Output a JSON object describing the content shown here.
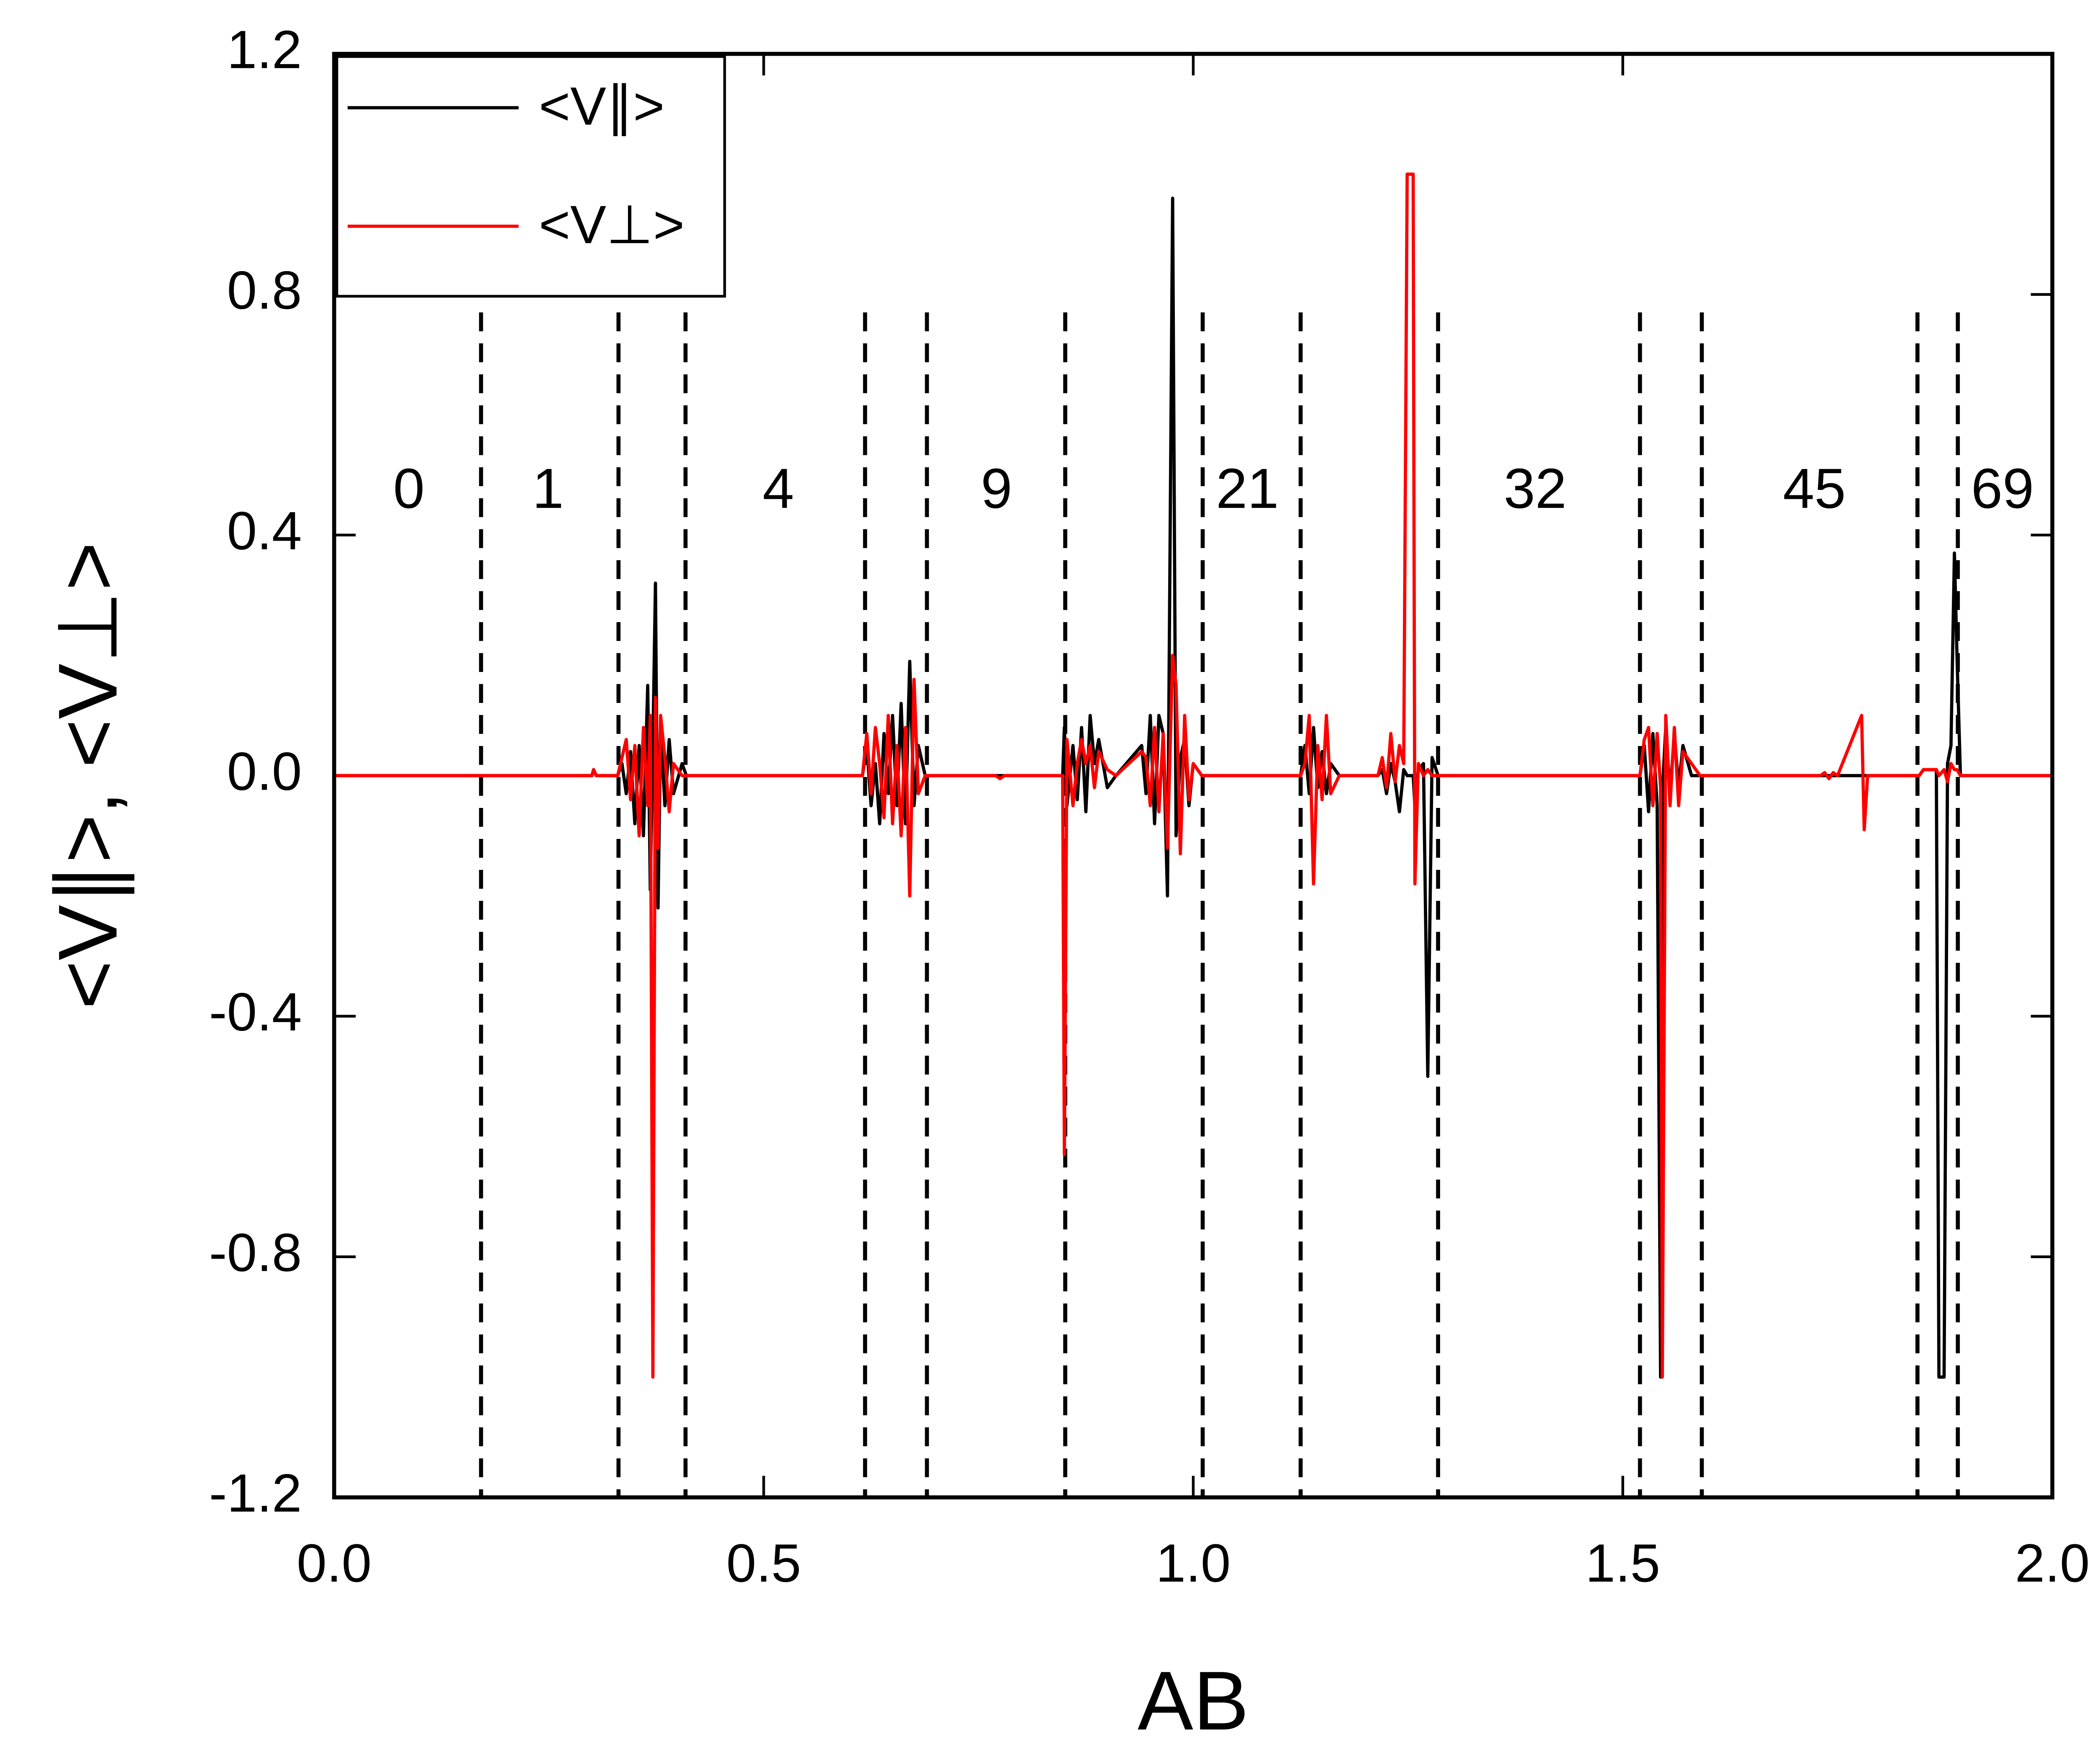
{
  "chart_data": {
    "type": "line",
    "xlabel": "AB",
    "ylabel": "<V∥>, <V⊥>",
    "xlim": [
      0,
      2
    ],
    "ylim": [
      -1.2,
      1.2
    ],
    "xticks": [
      {
        "value": 0,
        "label": "0.0"
      },
      0.5,
      {
        "value": 1,
        "label": "1.0"
      },
      1.5,
      {
        "value": 2,
        "label": "2.0"
      }
    ],
    "yticks": [
      -1.2,
      -0.8,
      -0.4,
      {
        "value": 0,
        "label": "0.0"
      },
      0.4,
      0.8,
      1.2
    ],
    "legend": "upper left",
    "vlines": [
      0.171,
      0.331,
      0.409,
      0.618,
      0.69,
      0.851,
      1.011,
      1.125,
      1.285,
      1.52,
      1.592,
      1.843,
      1.89
    ],
    "annotations": [
      {
        "text": "0",
        "x": 0.087,
        "y": 0.47
      },
      {
        "text": "1",
        "x": 0.249,
        "y": 0.47
      },
      {
        "text": "4",
        "x": 0.517,
        "y": 0.47
      },
      {
        "text": "9",
        "x": 0.771,
        "y": 0.47
      },
      {
        "text": "21",
        "x": 1.063,
        "y": 0.47
      },
      {
        "text": "32",
        "x": 1.398,
        "y": 0.47
      },
      {
        "text": "45",
        "x": 1.723,
        "y": 0.47
      },
      {
        "text": "69",
        "x": 1.942,
        "y": 0.47
      }
    ],
    "x": [
      0,
      0.3,
      0.302,
      0.305,
      0.33,
      0.335,
      0.34,
      0.345,
      0.35,
      0.355,
      0.36,
      0.365,
      0.368,
      0.371,
      0.374,
      0.377,
      0.38,
      0.385,
      0.39,
      0.395,
      0.405,
      0.41,
      0.615,
      0.62,
      0.625,
      0.63,
      0.635,
      0.64,
      0.645,
      0.65,
      0.655,
      0.66,
      0.665,
      0.67,
      0.675,
      0.68,
      0.688,
      0.77,
      0.775,
      0.78,
      0.848,
      0.85,
      0.853,
      0.86,
      0.865,
      0.87,
      0.875,
      0.88,
      0.885,
      0.89,
      0.9,
      0.91,
      0.94,
      0.945,
      0.95,
      0.955,
      0.96,
      0.965,
      0.97,
      0.976,
      0.98,
      0.985,
      0.99,
      0.995,
      1.0,
      1.01,
      1.125,
      1.13,
      1.135,
      1.14,
      1.145,
      1.15,
      1.155,
      1.16,
      1.17,
      1.215,
      1.22,
      1.225,
      1.23,
      1.235,
      1.24,
      1.245,
      1.249,
      1.256,
      1.258,
      1.262,
      1.268,
      1.273,
      1.278,
      1.285,
      1.52,
      1.525,
      1.53,
      1.535,
      1.54,
      1.544,
      1.546,
      1.55,
      1.555,
      1.56,
      1.565,
      1.57,
      1.58,
      1.59,
      1.73,
      1.735,
      1.74,
      1.745,
      1.75,
      1.778,
      1.781,
      1.785,
      1.845,
      1.85,
      1.865,
      1.868,
      1.874,
      1.878,
      1.882,
      1.886,
      1.889,
      1.893,
      2.0
    ],
    "series": [
      {
        "name": "<V∥>",
        "color": "#000000",
        "values": [
          0,
          0,
          0.01,
          0,
          0,
          0.02,
          -0.03,
          0.04,
          -0.08,
          0.05,
          -0.1,
          0.15,
          -0.19,
          0.05,
          0.32,
          -0.22,
          0.08,
          -0.05,
          0.06,
          -0.03,
          0.02,
          0,
          0,
          0.05,
          -0.05,
          0.02,
          -0.08,
          0.07,
          -0.03,
          0.1,
          -0.05,
          0.12,
          -0.08,
          0.19,
          -0.05,
          0.05,
          0,
          0,
          0,
          0,
          0,
          0.08,
          -0.05,
          0.05,
          -0.04,
          0.08,
          -0.06,
          0.1,
          0.02,
          0.06,
          -0.02,
          0,
          0.05,
          -0.03,
          0.1,
          -0.08,
          0.1,
          0.07,
          -0.2,
          0.96,
          -0.1,
          0.03,
          0.06,
          -0.05,
          0.02,
          0,
          0,
          0.05,
          -0.03,
          0.08,
          -0.02,
          0.04,
          -0.03,
          0.02,
          0,
          0,
          0.01,
          -0.03,
          0.02,
          -0.01,
          -0.06,
          0.01,
          0,
          0,
          -0.05,
          0.01,
          0.02,
          -0.5,
          0.03,
          0,
          0,
          0.05,
          -0.06,
          0.07,
          -0.05,
          -1.0,
          -0.03,
          0.08,
          -0.03,
          0.07,
          -0.02,
          0.05,
          0,
          0,
          0,
          0,
          0,
          0,
          0,
          0,
          0,
          0,
          0,
          0.01,
          0.01,
          -1.0,
          -1.0,
          0.02,
          0.05,
          0.37,
          0.2,
          0,
          0
        ]
      },
      {
        "name": "<V⊥>",
        "color": "#ff0000",
        "values": [
          0,
          0,
          0.01,
          0,
          0,
          0.03,
          0.06,
          -0.04,
          0.05,
          -0.1,
          0.08,
          -0.05,
          0.1,
          -1.0,
          0.13,
          -0.12,
          0.1,
          0.03,
          -0.06,
          0.02,
          0,
          0,
          0,
          0.07,
          -0.03,
          0.08,
          0.02,
          -0.07,
          0.1,
          -0.08,
          0.05,
          -0.1,
          0.08,
          -0.2,
          0.16,
          -0.03,
          0,
          0,
          -0.005,
          0,
          0,
          -0.63,
          0.06,
          -0.05,
          0.02,
          0.06,
          0.02,
          0.05,
          -0.02,
          0.04,
          0.01,
          0,
          0.04,
          0.03,
          -0.05,
          0.08,
          -0.06,
          0.07,
          -0.12,
          0.2,
          0.15,
          -0.13,
          0.1,
          -0.04,
          0.02,
          0,
          0,
          0.02,
          0.1,
          -0.18,
          0.05,
          -0.04,
          0.1,
          -0.03,
          0,
          0,
          0.03,
          -0.02,
          0.07,
          -0.01,
          0.05,
          0.02,
          1.0,
          1.0,
          -0.18,
          0.02,
          0,
          0.01,
          0,
          0,
          0,
          0.06,
          0.08,
          -0.05,
          0.07,
          -0.02,
          -1.0,
          0.1,
          -0.05,
          0.08,
          -0.05,
          0.04,
          0.02,
          0,
          0,
          0.005,
          -0.005,
          0.005,
          0,
          0.1,
          -0.09,
          0,
          0,
          0.01,
          0.01,
          0,
          0.01,
          -0.01,
          0.02,
          0.01,
          0.01,
          0,
          0
        ]
      }
    ]
  }
}
